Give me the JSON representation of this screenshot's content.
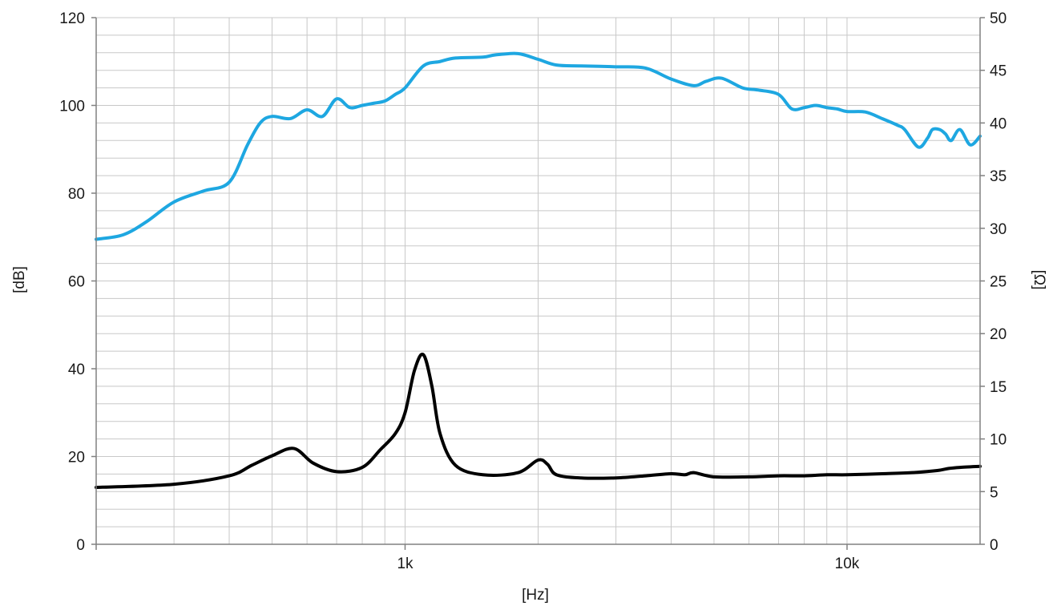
{
  "chart_data": {
    "type": "line",
    "xlabel": "[Hz]",
    "ylabel_left": "[dB]",
    "ylabel_right": "[Ω]",
    "xscale": "log",
    "xlim": [
      200,
      20000
    ],
    "ylim_left": [
      0,
      120
    ],
    "ylim_right": [
      0,
      50
    ],
    "grid": true,
    "x_tick_labels": [
      {
        "value": 1000,
        "label": "1k"
      },
      {
        "value": 10000,
        "label": "10k"
      }
    ],
    "y_ticks_left": [
      0,
      20,
      40,
      60,
      80,
      100,
      120
    ],
    "y_ticks_right": [
      0,
      5,
      10,
      15,
      20,
      25,
      30,
      35,
      40,
      45,
      50
    ],
    "series": [
      {
        "axis": "left",
        "color": "#1ea7e1",
        "x": [
          200,
          230,
          260,
          300,
          350,
          400,
          440,
          470,
          500,
          550,
          600,
          650,
          700,
          750,
          800,
          850,
          900,
          950,
          1000,
          1100,
          1200,
          1300,
          1500,
          1600,
          1800,
          2000,
          2200,
          2500,
          3000,
          3500,
          4000,
          4500,
          4800,
          5200,
          5800,
          6300,
          7000,
          7500,
          8000,
          8500,
          9000,
          9500,
          10000,
          11000,
          12000,
          13000,
          13500,
          14500,
          15200,
          15600,
          16200,
          16700,
          17200,
          18000,
          19000,
          20000
        ],
        "y": [
          69.5,
          70.5,
          73.5,
          78,
          80.5,
          82.5,
          91,
          96,
          97.5,
          97,
          99,
          97.5,
          101.5,
          99.5,
          100,
          100.5,
          101,
          102.5,
          104,
          109,
          110,
          110.8,
          111,
          111.5,
          111.8,
          110.5,
          109.2,
          109,
          108.8,
          108.5,
          106,
          104.5,
          105.5,
          106.2,
          104,
          103.5,
          102.5,
          99.2,
          99.5,
          100,
          99.5,
          99.2,
          98.6,
          98.5,
          97,
          95.5,
          94.5,
          90.5,
          92.5,
          94.5,
          94.5,
          93.5,
          92,
          94.5,
          91,
          93
        ]
      },
      {
        "axis": "right",
        "color": "#000000",
        "x": [
          200,
          300,
          400,
          450,
          500,
          560,
          620,
          700,
          800,
          880,
          950,
          1000,
          1050,
          1100,
          1150,
          1200,
          1300,
          1500,
          1800,
          2000,
          2100,
          2200,
          2500,
          3000,
          3500,
          4000,
          4300,
          4500,
          5000,
          6000,
          7000,
          8000,
          9000,
          10000,
          12000,
          14000,
          16000,
          17000,
          18000,
          20000
        ],
        "y": [
          5.4,
          5.7,
          6.5,
          7.5,
          8.4,
          9.1,
          7.7,
          6.9,
          7.3,
          9,
          10.5,
          12.5,
          16.5,
          18,
          15,
          10.5,
          7.5,
          6.6,
          6.8,
          8,
          7.6,
          6.6,
          6.3,
          6.3,
          6.5,
          6.7,
          6.6,
          6.8,
          6.4,
          6.4,
          6.5,
          6.5,
          6.6,
          6.6,
          6.7,
          6.8,
          7,
          7.2,
          7.3,
          7.4
        ]
      }
    ]
  }
}
